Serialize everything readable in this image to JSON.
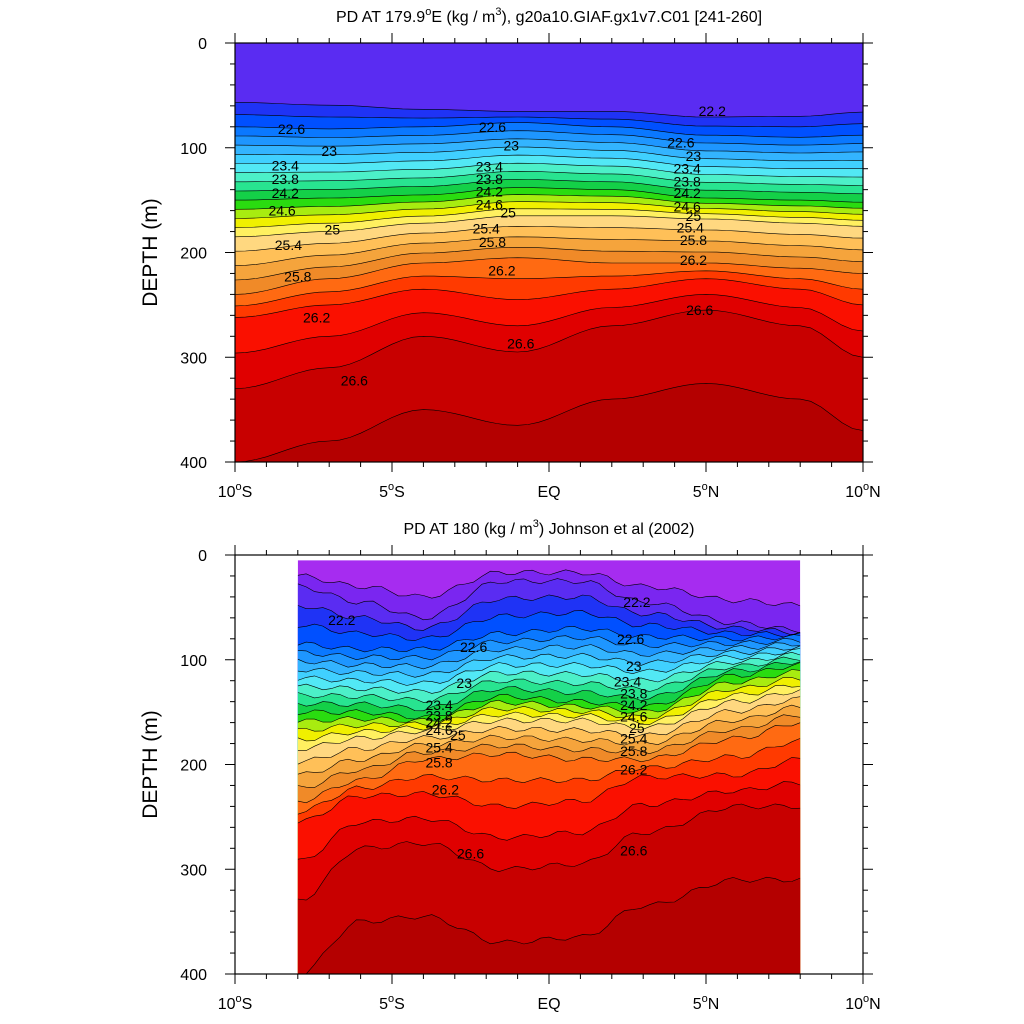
{
  "chart_data": [
    {
      "type": "contour",
      "title": "PD AT 179.9°E (kg / m³), g20a10.GIAF.gx1v7.C01 [241-260]",
      "title_parts": {
        "pre": "PD AT 179.9",
        "sup1": "o",
        "mid": "E (kg / m",
        "sup2": "3",
        "post": "), g20a10.GIAF.gx1v7.C01 [241-260]"
      },
      "ylabel": "DEPTH (m)",
      "xlim": [
        -10,
        10
      ],
      "ylim": [
        400,
        0
      ],
      "data_xlim": [
        -10,
        10
      ],
      "data_ylim": [
        0,
        400
      ],
      "x_ticks": [
        {
          "value": -10,
          "label": "10",
          "deg": "o",
          "hemi": "S"
        },
        {
          "value": -5,
          "label": "5",
          "deg": "o",
          "hemi": "S"
        },
        {
          "value": 0,
          "label": "EQ",
          "deg": "",
          "hemi": ""
        },
        {
          "value": 5,
          "label": "5",
          "deg": "o",
          "hemi": "N"
        },
        {
          "value": 10,
          "label": "10",
          "deg": "o",
          "hemi": "N"
        }
      ],
      "y_ticks": [
        "0",
        "100",
        "200",
        "300",
        "400"
      ],
      "contour_interval": 0.2,
      "levels_range": [
        22.0,
        26.8
      ],
      "depth_profiles": [
        {
          "lat": -10,
          "d22": 45,
          "d226": 80,
          "d242": 150,
          "d25": 185,
          "d258": 240,
          "d262": 262,
          "d266": 330
        },
        {
          "lat": -7,
          "d22": 48,
          "d226": 82,
          "d242": 148,
          "d25": 180,
          "d258": 225,
          "d262": 250,
          "d266": 310
        },
        {
          "lat": -4,
          "d22": 55,
          "d226": 80,
          "d242": 145,
          "d25": 172,
          "d258": 210,
          "d262": 235,
          "d266": 280
        },
        {
          "lat": -1,
          "d22": 60,
          "d226": 76,
          "d242": 138,
          "d25": 165,
          "d258": 205,
          "d262": 245,
          "d266": 295
        },
        {
          "lat": 2,
          "d22": 58,
          "d226": 80,
          "d242": 140,
          "d25": 165,
          "d258": 210,
          "d262": 235,
          "d266": 270
        },
        {
          "lat": 5,
          "d22": 62,
          "d226": 88,
          "d242": 148,
          "d25": 168,
          "d258": 210,
          "d262": 225,
          "d266": 255
        },
        {
          "lat": 8,
          "d22": 60,
          "d226": 90,
          "d242": 150,
          "d25": 172,
          "d258": 215,
          "d262": 235,
          "d266": 270
        },
        {
          "lat": 10,
          "d22": 55,
          "d226": 88,
          "d242": 152,
          "d25": 175,
          "d258": 220,
          "d262": 250,
          "d266": 300
        }
      ],
      "contour_labels": [
        {
          "text": "22.2",
          "lat": 5.2,
          "depth": 65
        },
        {
          "text": "22.6",
          "lat": -8.2,
          "depth": 82
        },
        {
          "text": "22.6",
          "lat": -1.8,
          "depth": 80
        },
        {
          "text": "22.6",
          "lat": 4.2,
          "depth": 95
        },
        {
          "text": "23",
          "lat": -7.0,
          "depth": 103
        },
        {
          "text": "23",
          "lat": -1.2,
          "depth": 98
        },
        {
          "text": "23",
          "lat": 4.6,
          "depth": 108
        },
        {
          "text": "23.4",
          "lat": -8.4,
          "depth": 117
        },
        {
          "text": "23.4",
          "lat": -1.9,
          "depth": 118
        },
        {
          "text": "23.4",
          "lat": 4.4,
          "depth": 120
        },
        {
          "text": "23.8",
          "lat": -8.4,
          "depth": 130
        },
        {
          "text": "23.8",
          "lat": -1.9,
          "depth": 130
        },
        {
          "text": "23.8",
          "lat": 4.4,
          "depth": 132
        },
        {
          "text": "24.2",
          "lat": -8.4,
          "depth": 143
        },
        {
          "text": "24.2",
          "lat": -1.9,
          "depth": 142
        },
        {
          "text": "24.2",
          "lat": 4.4,
          "depth": 143
        },
        {
          "text": "24.6",
          "lat": -8.5,
          "depth": 160
        },
        {
          "text": "24.6",
          "lat": -1.9,
          "depth": 154
        },
        {
          "text": "24.6",
          "lat": 4.4,
          "depth": 156
        },
        {
          "text": "25",
          "lat": -6.9,
          "depth": 178
        },
        {
          "text": "25",
          "lat": -1.3,
          "depth": 162
        },
        {
          "text": "25",
          "lat": 4.6,
          "depth": 165
        },
        {
          "text": "25.4",
          "lat": -8.3,
          "depth": 193
        },
        {
          "text": "25.4",
          "lat": -2.0,
          "depth": 177
        },
        {
          "text": "25.4",
          "lat": 4.5,
          "depth": 176
        },
        {
          "text": "25.8",
          "lat": -8.0,
          "depth": 223
        },
        {
          "text": "25.8",
          "lat": -1.8,
          "depth": 190
        },
        {
          "text": "25.8",
          "lat": 4.6,
          "depth": 188
        },
        {
          "text": "26.2",
          "lat": -7.4,
          "depth": 262
        },
        {
          "text": "26.2",
          "lat": -1.5,
          "depth": 217
        },
        {
          "text": "26.2",
          "lat": 4.6,
          "depth": 207
        },
        {
          "text": "26.6",
          "lat": -6.2,
          "depth": 322
        },
        {
          "text": "26.6",
          "lat": -0.9,
          "depth": 287
        },
        {
          "text": "26.6",
          "lat": 4.8,
          "depth": 255
        }
      ]
    },
    {
      "type": "contour",
      "title": "PD AT 180 (kg / m³) Johnson et al (2002)",
      "title_parts": {
        "pre": "PD AT 180 (kg / m",
        "sup1": "3",
        "mid": "",
        "sup2": "",
        "post": ") Johnson et al (2002)"
      },
      "ylabel": "DEPTH (m)",
      "xlim": [
        -10,
        10
      ],
      "ylim": [
        400,
        0
      ],
      "data_xlim": [
        -8,
        8
      ],
      "data_ylim": [
        5,
        400
      ],
      "x_ticks": [
        {
          "value": -10,
          "label": "10",
          "deg": "o",
          "hemi": "S"
        },
        {
          "value": -5,
          "label": "5",
          "deg": "o",
          "hemi": "S"
        },
        {
          "value": 0,
          "label": "EQ",
          "deg": "",
          "hemi": ""
        },
        {
          "value": 5,
          "label": "5",
          "deg": "o",
          "hemi": "N"
        },
        {
          "value": 10,
          "label": "10",
          "deg": "o",
          "hemi": "N"
        }
      ],
      "y_ticks": [
        "0",
        "100",
        "200",
        "300",
        "400"
      ],
      "contour_interval": 0.2,
      "levels_range": [
        21.6,
        26.8
      ],
      "depth_profiles": [
        {
          "lat": -8,
          "d22": 30,
          "d226": 85,
          "d242": 150,
          "d25": 185,
          "d258": 235,
          "d262": 255,
          "d266": 330
        },
        {
          "lat": -6,
          "d22": 45,
          "d226": 90,
          "d242": 150,
          "d25": 175,
          "d258": 215,
          "d262": 230,
          "d266": 280
        },
        {
          "lat": -4,
          "d22": 60,
          "d226": 90,
          "d242": 155,
          "d25": 168,
          "d258": 195,
          "d262": 228,
          "d266": 275
        },
        {
          "lat": -1.5,
          "d22": 25,
          "d226": 75,
          "d242": 135,
          "d25": 158,
          "d258": 190,
          "d262": 240,
          "d266": 300
        },
        {
          "lat": 1,
          "d22": 25,
          "d226": 70,
          "d242": 140,
          "d25": 158,
          "d258": 195,
          "d262": 235,
          "d266": 295
        },
        {
          "lat": 3,
          "d22": 45,
          "d226": 78,
          "d242": 145,
          "d25": 165,
          "d258": 195,
          "d262": 212,
          "d266": 265
        },
        {
          "lat": 6,
          "d22": 65,
          "d226": 80,
          "d242": 115,
          "d25": 140,
          "d258": 175,
          "d262": 210,
          "d266": 240
        },
        {
          "lat": 8,
          "d22": 72,
          "d226": 78,
          "d242": 105,
          "d25": 130,
          "d258": 160,
          "d262": 195,
          "d266": 240
        }
      ],
      "contour_labels": [
        {
          "text": "22.2",
          "lat": 2.8,
          "depth": 45
        },
        {
          "text": "22.2",
          "lat": -6.6,
          "depth": 62
        },
        {
          "text": "22.6",
          "lat": 2.6,
          "depth": 80
        },
        {
          "text": "22.6",
          "lat": -2.4,
          "depth": 88
        },
        {
          "text": "23",
          "lat": 2.7,
          "depth": 106
        },
        {
          "text": "23",
          "lat": -2.7,
          "depth": 122
        },
        {
          "text": "23.4",
          "lat": 2.5,
          "depth": 121
        },
        {
          "text": "23.4",
          "lat": -3.5,
          "depth": 143
        },
        {
          "text": "23.8",
          "lat": 2.7,
          "depth": 132
        },
        {
          "text": "23.8",
          "lat": -3.5,
          "depth": 153
        },
        {
          "text": "24.2",
          "lat": 2.7,
          "depth": 143
        },
        {
          "text": "24.2",
          "lat": -3.5,
          "depth": 160
        },
        {
          "text": "24.6",
          "lat": 2.7,
          "depth": 154
        },
        {
          "text": "24.6",
          "lat": -3.5,
          "depth": 167
        },
        {
          "text": "25",
          "lat": 2.8,
          "depth": 165
        },
        {
          "text": "25",
          "lat": -2.9,
          "depth": 172
        },
        {
          "text": "25.4",
          "lat": 2.7,
          "depth": 175
        },
        {
          "text": "25.4",
          "lat": -3.5,
          "depth": 184
        },
        {
          "text": "25.8",
          "lat": 2.7,
          "depth": 187
        },
        {
          "text": "25.8",
          "lat": -3.5,
          "depth": 198
        },
        {
          "text": "26.2",
          "lat": 2.7,
          "depth": 205
        },
        {
          "text": "26.2",
          "lat": -3.3,
          "depth": 224
        },
        {
          "text": "26.6",
          "lat": 2.7,
          "depth": 282
        },
        {
          "text": "26.6",
          "lat": -2.5,
          "depth": 285
        }
      ]
    }
  ]
}
